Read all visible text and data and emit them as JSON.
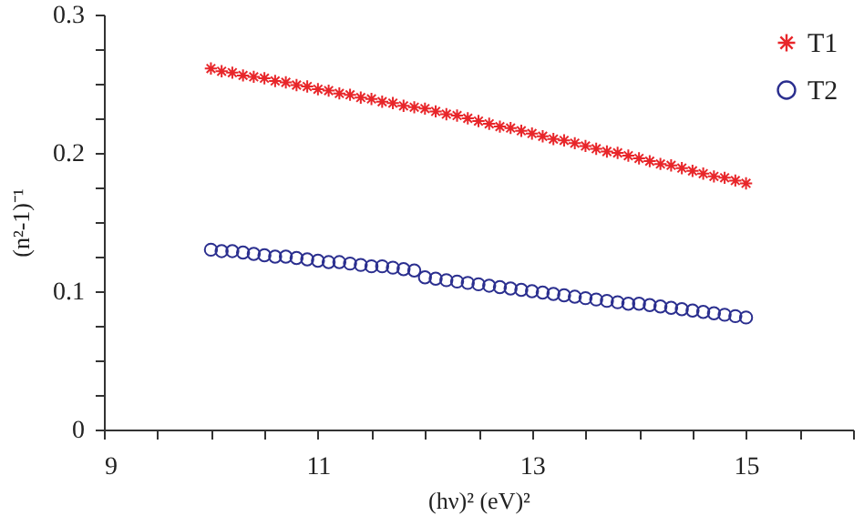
{
  "chart_data": {
    "type": "scatter",
    "xlabel": "(hν)² (eV)²",
    "ylabel": "(n²-1)⁻¹",
    "x": [
      10.0,
      10.1,
      10.2,
      10.3,
      10.4,
      10.5,
      10.6,
      10.7,
      10.8,
      10.9,
      11.0,
      11.1,
      11.2,
      11.3,
      11.4,
      11.5,
      11.6,
      11.7,
      11.8,
      11.9,
      12.0,
      12.1,
      12.2,
      12.3,
      12.4,
      12.5,
      12.6,
      12.7,
      12.8,
      12.9,
      13.0,
      13.1,
      13.2,
      13.3,
      13.4,
      13.5,
      13.6,
      13.7,
      13.8,
      13.9,
      14.0,
      14.1,
      14.2,
      14.3,
      14.4,
      14.5,
      14.6,
      14.7,
      14.8,
      14.9,
      15.0
    ],
    "series": [
      {
        "name": "T1",
        "color": "#e8262a",
        "marker": "cross",
        "values": [
          0.261,
          0.259,
          0.258,
          0.256,
          0.255,
          0.254,
          0.252,
          0.251,
          0.249,
          0.248,
          0.246,
          0.245,
          0.243,
          0.242,
          0.24,
          0.239,
          0.237,
          0.236,
          0.234,
          0.233,
          0.232,
          0.23,
          0.228,
          0.227,
          0.225,
          0.223,
          0.221,
          0.219,
          0.218,
          0.216,
          0.214,
          0.212,
          0.21,
          0.209,
          0.207,
          0.205,
          0.203,
          0.201,
          0.2,
          0.198,
          0.196,
          0.194,
          0.192,
          0.191,
          0.189,
          0.187,
          0.185,
          0.183,
          0.182,
          0.18,
          0.178
        ]
      },
      {
        "name": "T2",
        "color": "#2b2f8f",
        "marker": "circle",
        "values": [
          0.13,
          0.129,
          0.129,
          0.128,
          0.127,
          0.126,
          0.125,
          0.125,
          0.124,
          0.123,
          0.122,
          0.121,
          0.121,
          0.12,
          0.119,
          0.118,
          0.118,
          0.117,
          0.116,
          0.115,
          0.11,
          0.109,
          0.108,
          0.107,
          0.106,
          0.105,
          0.104,
          0.103,
          0.102,
          0.101,
          0.1,
          0.099,
          0.098,
          0.097,
          0.096,
          0.095,
          0.094,
          0.093,
          0.092,
          0.091,
          0.091,
          0.09,
          0.089,
          0.088,
          0.087,
          0.086,
          0.085,
          0.084,
          0.083,
          0.082,
          0.081
        ]
      }
    ],
    "xlim": [
      9,
      16
    ],
    "xticks": [
      9,
      {
        "value": 9.5,
        "label": null
      },
      {
        "value": 10,
        "label": null
      },
      {
        "value": 10.5,
        "label": null
      },
      11,
      {
        "value": 11.5,
        "label": null
      },
      {
        "value": 12,
        "label": null
      },
      {
        "value": 12.5,
        "label": null
      },
      13,
      {
        "value": 13.5,
        "label": null
      },
      {
        "value": 14,
        "label": null
      },
      {
        "value": 14.5,
        "label": null
      },
      15,
      {
        "value": 15.5,
        "label": null
      },
      {
        "value": 16,
        "label": null
      }
    ],
    "ylim": [
      0,
      0.3
    ],
    "yticks": [
      0,
      {
        "value": 0.025,
        "label": null
      },
      {
        "value": 0.05,
        "label": null
      },
      {
        "value": 0.075,
        "label": null
      },
      0.1,
      {
        "value": 0.125,
        "label": null
      },
      {
        "value": 0.15,
        "label": null
      },
      {
        "value": 0.175,
        "label": null
      },
      0.2,
      {
        "value": 0.225,
        "label": null
      },
      {
        "value": 0.25,
        "label": null
      },
      {
        "value": 0.275,
        "label": null
      },
      0.3
    ],
    "grid": false,
    "legend": "top right"
  }
}
